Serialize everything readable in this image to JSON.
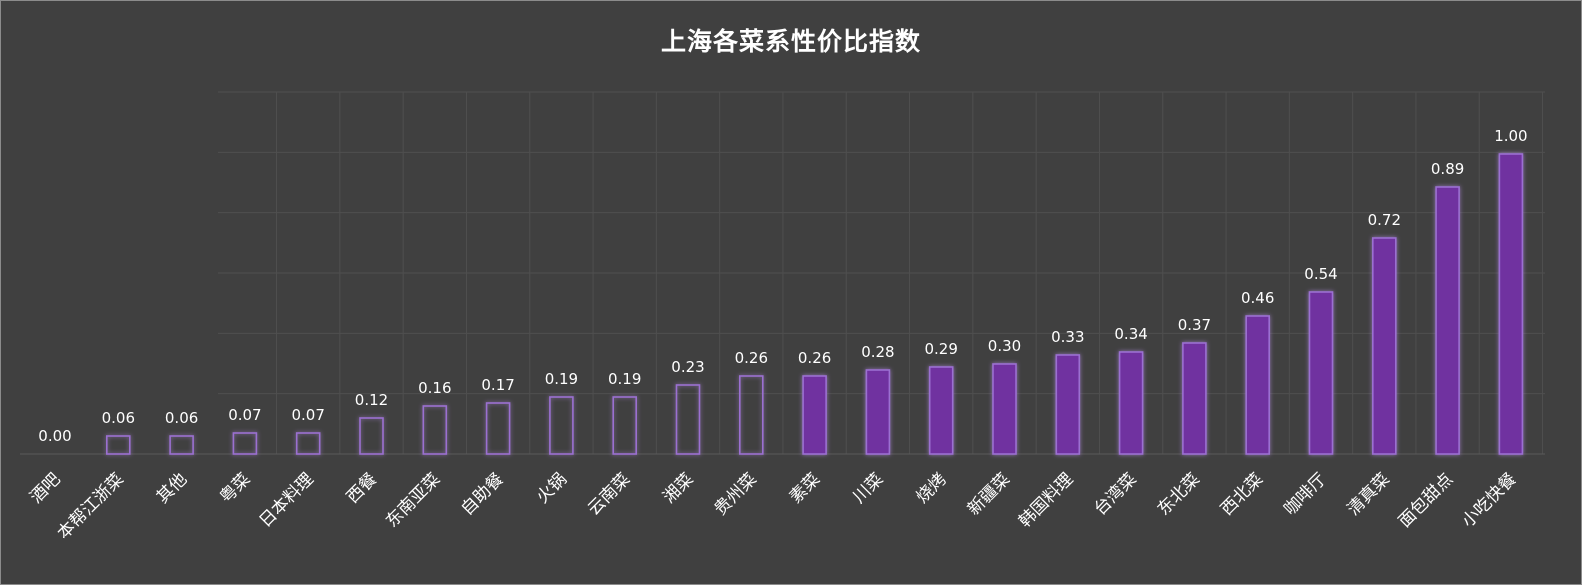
{
  "chart_data": {
    "type": "bar",
    "title": "上海各菜系性价比指数",
    "xlabel": "",
    "ylabel": "",
    "ylim": [
      0,
      1.2
    ],
    "grid": true,
    "categories": [
      "酒吧",
      "本帮江浙菜",
      "其他",
      "粤菜",
      "日本料理",
      "西餐",
      "东南亚菜",
      "自助餐",
      "火锅",
      "云南菜",
      "湘菜",
      "贵州菜",
      "素菜",
      "川菜",
      "烧烤",
      "新疆菜",
      "韩国料理",
      "台湾菜",
      "东北菜",
      "西北菜",
      "咖啡厅",
      "清真菜",
      "面包甜点",
      "小吃快餐"
    ],
    "value_labels": [
      "0.00",
      "0.06",
      "0.06",
      "0.07",
      "0.07",
      "0.12",
      "0.16",
      "0.17",
      "0.19",
      "0.19",
      "0.23",
      "0.26",
      "0.26",
      "0.28",
      "0.29",
      "0.30",
      "0.33",
      "0.34",
      "0.37",
      "0.46",
      "0.54",
      "0.72",
      "0.89",
      "1.00"
    ],
    "values": [
      0.0,
      0.06,
      0.06,
      0.07,
      0.07,
      0.12,
      0.16,
      0.17,
      0.19,
      0.19,
      0.23,
      0.26,
      0.26,
      0.28,
      0.29,
      0.3,
      0.33,
      0.34,
      0.37,
      0.46,
      0.54,
      0.72,
      0.89,
      1.0
    ],
    "filled": [
      false,
      false,
      false,
      false,
      false,
      false,
      false,
      false,
      false,
      false,
      false,
      false,
      true,
      true,
      true,
      true,
      true,
      true,
      true,
      true,
      true,
      true,
      true,
      true
    ],
    "colors": {
      "bar_fill": "#7030a0",
      "bar_outline": "#9b6fd1",
      "glow": "#b48ce6"
    }
  }
}
